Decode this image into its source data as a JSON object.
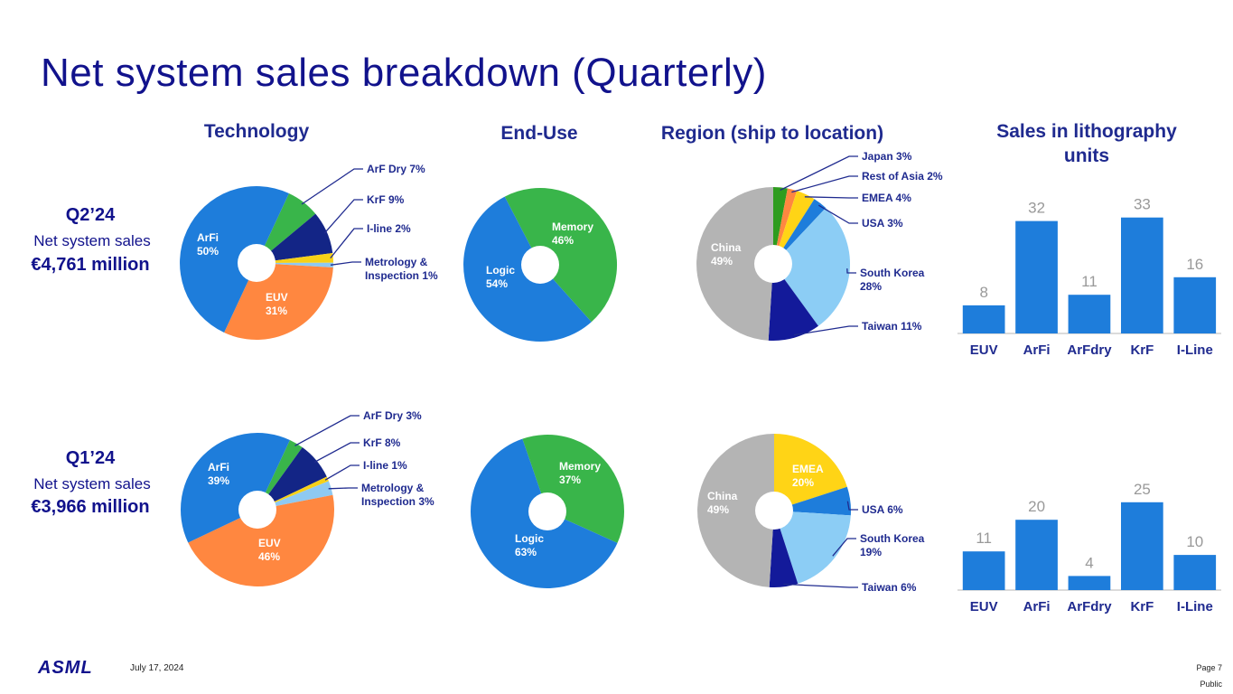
{
  "title": "Net system sales breakdown (Quarterly)",
  "headers": {
    "technology": "Technology",
    "end_use": "End-Use",
    "region": "Region (ship to location)",
    "units_line1": "Sales in lithography",
    "units_line2": "units"
  },
  "q2": {
    "quarter": "Q2’24",
    "label": "Net system sales",
    "amount": "€4,761 million"
  },
  "q1": {
    "quarter": "Q1’24",
    "label": "Net system sales",
    "amount": "€3,966 million"
  },
  "footer": {
    "logo": "ASML",
    "date": "July 17, 2024",
    "page": "Page 7",
    "classification": "Public"
  },
  "colors": {
    "arfi": "#1e7ddb",
    "arf_dry": "#39b54a",
    "krf": "#132586",
    "iline": "#f7d117",
    "metrology": "#8ec9f2",
    "euv": "#ff8740",
    "logic": "#1e7ddb",
    "memory": "#39b54a",
    "china": "#b4b4b4",
    "japan": "#2e9c1f",
    "rest_of_asia": "#ff8740",
    "emea": "#ffd416",
    "usa": "#1e7ddb",
    "south_korea": "#8ccdf5",
    "taiwan": "#131a9a",
    "bar": "#1e7ddb"
  },
  "chart_data": [
    {
      "type": "pie",
      "title": "Technology",
      "quarter": "Q2’24",
      "slices": [
        {
          "name": "ArF Dry",
          "value": 7,
          "label": "ArF Dry 7%",
          "color": "#39b54a"
        },
        {
          "name": "KrF",
          "value": 9,
          "label": "KrF 9%",
          "color": "#132586"
        },
        {
          "name": "I-line",
          "value": 2,
          "label": "I-line 2%",
          "color": "#f7d117"
        },
        {
          "name": "Metrology & Inspection",
          "value": 1,
          "label": "Metrology & Inspection 1%",
          "color": "#8ec9f2"
        },
        {
          "name": "EUV",
          "value": 31,
          "label": "EUV 31%",
          "color": "#ff8740"
        },
        {
          "name": "ArFi",
          "value": 50,
          "label": "ArFi 50%",
          "color": "#1e7ddb"
        }
      ]
    },
    {
      "type": "pie",
      "title": "End-Use",
      "quarter": "Q2’24",
      "slices": [
        {
          "name": "Memory",
          "value": 46,
          "label": "Memory 46%",
          "color": "#39b54a"
        },
        {
          "name": "Logic",
          "value": 54,
          "label": "Logic 54%",
          "color": "#1e7ddb"
        }
      ]
    },
    {
      "type": "pie",
      "title": "Region (ship to location)",
      "quarter": "Q2’24",
      "slices": [
        {
          "name": "Japan",
          "value": 3,
          "label": "Japan 3%",
          "color": "#2e9c1f"
        },
        {
          "name": "Rest of Asia",
          "value": 2,
          "label": "Rest of Asia 2%",
          "color": "#ff8740"
        },
        {
          "name": "EMEA",
          "value": 4,
          "label": "EMEA 4%",
          "color": "#ffd416"
        },
        {
          "name": "USA",
          "value": 3,
          "label": "USA 3%",
          "color": "#1e7ddb"
        },
        {
          "name": "South Korea",
          "value": 28,
          "label": "South Korea 28%",
          "color": "#8ccdf5"
        },
        {
          "name": "Taiwan",
          "value": 11,
          "label": "Taiwan 11%",
          "color": "#131a9a"
        },
        {
          "name": "China",
          "value": 49,
          "label": "China 49%",
          "color": "#b4b4b4"
        }
      ]
    },
    {
      "type": "bar",
      "title": "Sales in lithography units",
      "quarter": "Q2’24",
      "categories": [
        "EUV",
        "ArFi",
        "ArFdry",
        "KrF",
        "I-Line"
      ],
      "values": [
        8,
        32,
        11,
        33,
        16
      ],
      "ylim": [
        0,
        36
      ]
    },
    {
      "type": "pie",
      "title": "Technology",
      "quarter": "Q1’24",
      "slices": [
        {
          "name": "ArF Dry",
          "value": 3,
          "label": "ArF Dry 3%",
          "color": "#39b54a"
        },
        {
          "name": "KrF",
          "value": 8,
          "label": "KrF 8%",
          "color": "#132586"
        },
        {
          "name": "I-line",
          "value": 1,
          "label": "I-line 1%",
          "color": "#f7d117"
        },
        {
          "name": "Metrology & Inspection",
          "value": 3,
          "label": "Metrology & Inspection 3%",
          "color": "#8ec9f2"
        },
        {
          "name": "EUV",
          "value": 46,
          "label": "EUV 46%",
          "color": "#ff8740"
        },
        {
          "name": "ArFi",
          "value": 39,
          "label": "ArFi 39%",
          "color": "#1e7ddb"
        }
      ]
    },
    {
      "type": "pie",
      "title": "End-Use",
      "quarter": "Q1’24",
      "slices": [
        {
          "name": "Memory",
          "value": 37,
          "label": "Memory 37%",
          "color": "#39b54a"
        },
        {
          "name": "Logic",
          "value": 63,
          "label": "Logic 63%",
          "color": "#1e7ddb"
        }
      ]
    },
    {
      "type": "pie",
      "title": "Region (ship to location)",
      "quarter": "Q1’24",
      "slices": [
        {
          "name": "EMEA",
          "value": 20,
          "label": "EMEA 20%",
          "color": "#ffd416"
        },
        {
          "name": "USA",
          "value": 6,
          "label": "USA 6%",
          "color": "#1e7ddb"
        },
        {
          "name": "South Korea",
          "value": 19,
          "label": "South Korea 19%",
          "color": "#8ccdf5"
        },
        {
          "name": "Taiwan",
          "value": 6,
          "label": "Taiwan 6%",
          "color": "#131a9a"
        },
        {
          "name": "China",
          "value": 49,
          "label": "China 49%",
          "color": "#b4b4b4"
        }
      ]
    },
    {
      "type": "bar",
      "title": "Sales in lithography units",
      "quarter": "Q1’24",
      "categories": [
        "EUV",
        "ArFi",
        "ArFdry",
        "KrF",
        "I-Line"
      ],
      "values": [
        11,
        20,
        4,
        25,
        10
      ],
      "ylim": [
        0,
        36
      ]
    }
  ]
}
